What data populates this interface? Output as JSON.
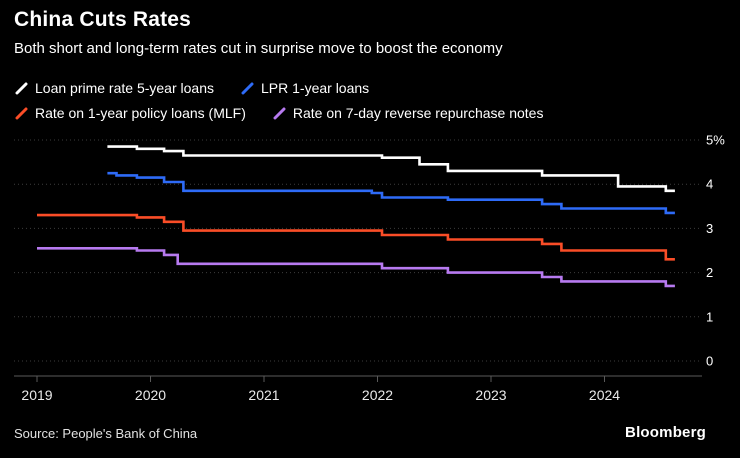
{
  "header": {
    "title": "China Cuts Rates",
    "subtitle": "Both short and long-term rates cut in surprise move to boost the economy"
  },
  "chart_data": {
    "type": "line",
    "title": "China Cuts Rates",
    "subtitle": "Both short and long-term rates cut in surprise move to boost the economy",
    "ylabel_ticks": [
      "5%",
      "4",
      "3",
      "2",
      "1",
      "0"
    ],
    "y_values": [
      5,
      4,
      3,
      2,
      1,
      0
    ],
    "y_range": [
      0,
      5
    ],
    "x_ticks": [
      2019,
      2020,
      2021,
      2022,
      2023,
      2024
    ],
    "x_end": 2024.62,
    "grid": "dotted-horizontal",
    "legend_position": "top",
    "background_color": "#000000",
    "series": [
      {
        "name": "Loan prime rate 5-year loans",
        "color": "#ffffff",
        "points": [
          [
            2019.62,
            4.85
          ],
          [
            2019.88,
            4.8
          ],
          [
            2020.12,
            4.75
          ],
          [
            2020.29,
            4.65
          ],
          [
            2022.04,
            4.6
          ],
          [
            2022.37,
            4.45
          ],
          [
            2022.62,
            4.3
          ],
          [
            2023.45,
            4.2
          ],
          [
            2024.12,
            3.95
          ],
          [
            2024.54,
            3.85
          ]
        ]
      },
      {
        "name": "LPR 1-year loans",
        "color": "#2e6bf7",
        "points": [
          [
            2019.62,
            4.25
          ],
          [
            2019.7,
            4.2
          ],
          [
            2019.88,
            4.15
          ],
          [
            2020.12,
            4.05
          ],
          [
            2020.29,
            3.85
          ],
          [
            2021.95,
            3.8
          ],
          [
            2022.04,
            3.7
          ],
          [
            2022.62,
            3.65
          ],
          [
            2023.45,
            3.55
          ],
          [
            2023.62,
            3.45
          ],
          [
            2024.54,
            3.35
          ]
        ]
      },
      {
        "name": "Rate on 1-year policy loans (MLF)",
        "color": "#fa4d27",
        "points": [
          [
            2019.0,
            3.3
          ],
          [
            2019.88,
            3.25
          ],
          [
            2020.12,
            3.15
          ],
          [
            2020.29,
            2.95
          ],
          [
            2022.04,
            2.85
          ],
          [
            2022.62,
            2.75
          ],
          [
            2023.45,
            2.65
          ],
          [
            2023.62,
            2.5
          ],
          [
            2024.54,
            2.3
          ]
        ]
      },
      {
        "name": "Rate on 7-day reverse repurchase notes",
        "color": "#b77af0",
        "points": [
          [
            2019.0,
            2.55
          ],
          [
            2019.88,
            2.5
          ],
          [
            2020.12,
            2.4
          ],
          [
            2020.24,
            2.2
          ],
          [
            2022.04,
            2.1
          ],
          [
            2022.62,
            2.0
          ],
          [
            2023.45,
            1.9
          ],
          [
            2023.62,
            1.8
          ],
          [
            2024.54,
            1.7
          ]
        ]
      }
    ]
  },
  "footer": {
    "source": "Source: People's Bank of China",
    "brand": "Bloomberg"
  }
}
